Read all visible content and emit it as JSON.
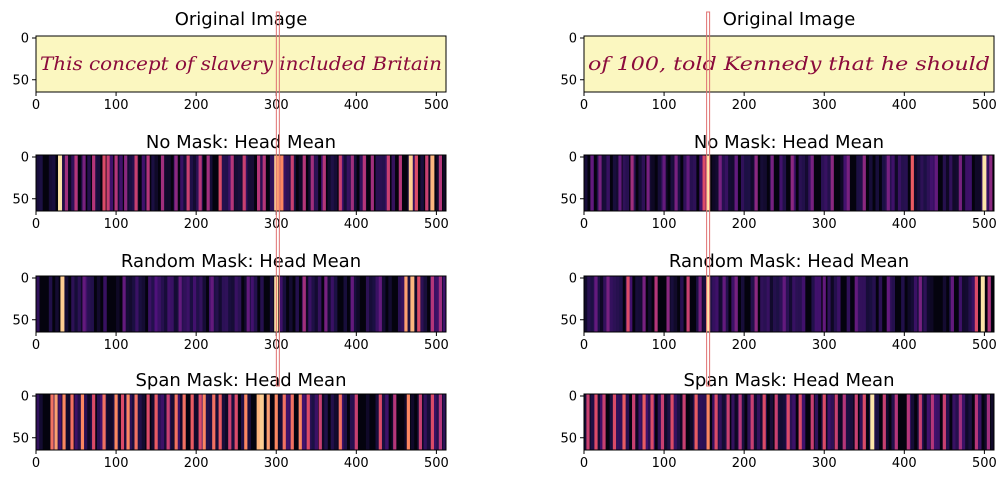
{
  "figure": {
    "panels": [
      {
        "title": "Original Image",
        "kind": "image",
        "text": "This concept of slavery included Britain",
        "bg": "#fbf7c0",
        "ink": "#8b0b3c"
      },
      {
        "title": "No Mask: Head Mean",
        "kind": "heatmap"
      },
      {
        "title": "Random Mask: Head Mean",
        "kind": "heatmap"
      },
      {
        "title": "Span Mask: Head Mean",
        "kind": "heatmap"
      },
      {
        "title": "Original Image",
        "kind": "image",
        "text": "of 100, told Kennedy that he should",
        "bg": "#fbf7c0",
        "ink": "#8b0b3c"
      },
      {
        "title": "No Mask: Head Mean",
        "kind": "heatmap"
      },
      {
        "title": "Random Mask: Head Mean",
        "kind": "heatmap"
      },
      {
        "title": "Span Mask: Head Mean",
        "kind": "heatmap"
      }
    ]
  },
  "chart_data": {
    "type": "heatmap",
    "colormap": "magma",
    "x_ticks": [
      "0",
      "100",
      "200",
      "300",
      "400",
      "500"
    ],
    "y_ticks": [
      "0",
      "50"
    ],
    "xlim": [
      0,
      512
    ],
    "ylim": [
      0,
      64
    ],
    "highlight_color": "#e07070",
    "columns": [
      {
        "highlight_x": 302,
        "no_mask": [
          [
            30,
            0.95
          ],
          [
            38,
            0.45
          ],
          [
            50,
            0.5
          ],
          [
            60,
            0.35
          ],
          [
            72,
            0.5
          ],
          [
            85,
            0.6
          ],
          [
            90,
            0.55
          ],
          [
            100,
            0.5
          ],
          [
            112,
            0.4
          ],
          [
            125,
            0.55
          ],
          [
            140,
            0.5
          ],
          [
            158,
            0.45
          ],
          [
            175,
            0.4
          ],
          [
            190,
            0.55
          ],
          [
            205,
            0.5
          ],
          [
            215,
            0.45
          ],
          [
            230,
            0.6
          ],
          [
            245,
            0.5
          ],
          [
            260,
            0.55
          ],
          [
            278,
            0.5
          ],
          [
            285,
            0.5
          ],
          [
            300,
            0.9
          ],
          [
            303,
            0.8
          ],
          [
            307,
            0.75
          ],
          [
            320,
            0.55
          ],
          [
            335,
            0.5
          ],
          [
            345,
            0.45
          ],
          [
            360,
            0.5
          ],
          [
            380,
            0.55
          ],
          [
            395,
            0.45
          ],
          [
            410,
            0.5
          ],
          [
            420,
            0.45
          ],
          [
            440,
            0.55
          ],
          [
            455,
            0.5
          ],
          [
            468,
            0.9
          ],
          [
            475,
            0.6
          ],
          [
            488,
            0.55
          ],
          [
            495,
            0.85
          ],
          [
            505,
            0.5
          ]
        ],
        "random_mask": [
          [
            33,
            0.9
          ],
          [
            60,
            0.3
          ],
          [
            110,
            0.3
          ],
          [
            150,
            0.25
          ],
          [
            180,
            0.3
          ],
          [
            220,
            0.3
          ],
          [
            265,
            0.3
          ],
          [
            300,
            0.95
          ],
          [
            335,
            0.45
          ],
          [
            362,
            0.35
          ],
          [
            395,
            0.3
          ],
          [
            430,
            0.3
          ],
          [
            462,
            0.8
          ],
          [
            470,
            0.85
          ],
          [
            478,
            0.6
          ],
          [
            495,
            0.5
          ],
          [
            505,
            0.45
          ]
        ],
        "span_mask": [
          [
            20,
            0.7
          ],
          [
            25,
            0.8
          ],
          [
            35,
            0.75
          ],
          [
            45,
            0.7
          ],
          [
            58,
            0.75
          ],
          [
            72,
            0.6
          ],
          [
            85,
            0.7
          ],
          [
            100,
            0.75
          ],
          [
            108,
            0.6
          ],
          [
            115,
            0.75
          ],
          [
            125,
            0.7
          ],
          [
            140,
            0.6
          ],
          [
            150,
            0.65
          ],
          [
            165,
            0.55
          ],
          [
            175,
            0.7
          ],
          [
            185,
            0.7
          ],
          [
            195,
            0.65
          ],
          [
            205,
            0.6
          ],
          [
            210,
            0.75
          ],
          [
            222,
            0.7
          ],
          [
            230,
            0.65
          ],
          [
            242,
            0.55
          ],
          [
            250,
            0.6
          ],
          [
            262,
            0.75
          ],
          [
            278,
            0.85
          ],
          [
            282,
            0.9
          ],
          [
            290,
            0.8
          ],
          [
            300,
            0.75
          ],
          [
            310,
            0.7
          ],
          [
            320,
            0.7
          ],
          [
            330,
            0.75
          ],
          [
            340,
            0.6
          ],
          [
            355,
            0.55
          ],
          [
            380,
            0.7
          ],
          [
            400,
            0.55
          ],
          [
            430,
            0.6
          ],
          [
            448,
            0.5
          ],
          [
            465,
            0.75
          ],
          [
            480,
            0.55
          ],
          [
            495,
            0.6
          ],
          [
            505,
            0.5
          ]
        ]
      },
      {
        "highlight_x": 155,
        "no_mask": [
          [
            10,
            0.3
          ],
          [
            20,
            0.35
          ],
          [
            45,
            0.3
          ],
          [
            60,
            0.45
          ],
          [
            80,
            0.35
          ],
          [
            100,
            0.3
          ],
          [
            115,
            0.35
          ],
          [
            130,
            0.3
          ],
          [
            150,
            0.6
          ],
          [
            155,
            0.95
          ],
          [
            170,
            0.35
          ],
          [
            190,
            0.3
          ],
          [
            215,
            0.4
          ],
          [
            235,
            0.35
          ],
          [
            260,
            0.4
          ],
          [
            285,
            0.35
          ],
          [
            310,
            0.4
          ],
          [
            330,
            0.35
          ],
          [
            350,
            0.4
          ],
          [
            380,
            0.35
          ],
          [
            410,
            0.65
          ],
          [
            440,
            0.3
          ],
          [
            470,
            0.35
          ],
          [
            500,
            0.95
          ],
          [
            508,
            0.4
          ]
        ],
        "random_mask": [
          [
            15,
            0.3
          ],
          [
            30,
            0.35
          ],
          [
            55,
            0.6
          ],
          [
            75,
            0.35
          ],
          [
            90,
            0.5
          ],
          [
            105,
            0.4
          ],
          [
            130,
            0.55
          ],
          [
            145,
            0.35
          ],
          [
            155,
            0.95
          ],
          [
            175,
            0.3
          ],
          [
            190,
            0.35
          ],
          [
            215,
            0.4
          ],
          [
            250,
            0.3
          ],
          [
            300,
            0.3
          ],
          [
            340,
            0.3
          ],
          [
            380,
            0.3
          ],
          [
            420,
            0.35
          ],
          [
            460,
            0.3
          ],
          [
            490,
            0.6
          ],
          [
            498,
            0.95
          ],
          [
            506,
            0.5
          ]
        ],
        "span_mask": [
          [
            5,
            0.55
          ],
          [
            15,
            0.6
          ],
          [
            25,
            0.55
          ],
          [
            38,
            0.6
          ],
          [
            50,
            0.65
          ],
          [
            62,
            0.55
          ],
          [
            75,
            0.65
          ],
          [
            85,
            0.6
          ],
          [
            98,
            0.55
          ],
          [
            110,
            0.6
          ],
          [
            125,
            0.55
          ],
          [
            140,
            0.65
          ],
          [
            155,
            0.75
          ],
          [
            165,
            0.6
          ],
          [
            180,
            0.55
          ],
          [
            195,
            0.5
          ],
          [
            210,
            0.55
          ],
          [
            225,
            0.6
          ],
          [
            240,
            0.55
          ],
          [
            255,
            0.6
          ],
          [
            270,
            0.6
          ],
          [
            285,
            0.55
          ],
          [
            300,
            0.6
          ],
          [
            315,
            0.55
          ],
          [
            325,
            0.5
          ],
          [
            340,
            0.55
          ],
          [
            350,
            0.6
          ],
          [
            360,
            0.95
          ],
          [
            375,
            0.55
          ],
          [
            390,
            0.5
          ],
          [
            405,
            0.5
          ],
          [
            420,
            0.55
          ],
          [
            435,
            0.5
          ],
          [
            450,
            0.55
          ],
          [
            470,
            0.45
          ],
          [
            490,
            0.5
          ],
          [
            505,
            0.45
          ]
        ]
      }
    ]
  }
}
